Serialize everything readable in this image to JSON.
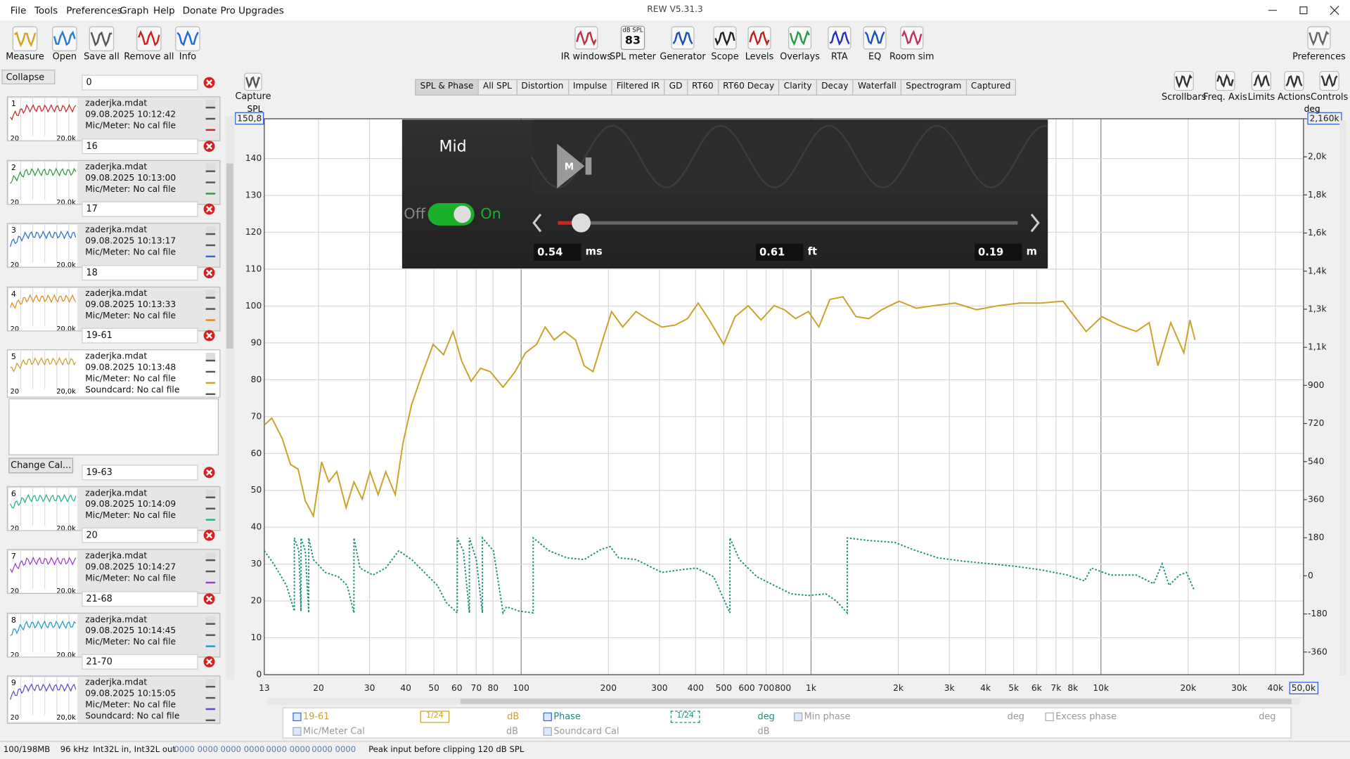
{
  "window": {
    "title": "REW V5.31.3"
  },
  "menu": [
    "File",
    "Tools",
    "Preferences",
    "Graph",
    "Help",
    "Donate",
    "Pro Upgrades"
  ],
  "toolbar": {
    "left": [
      "Measure",
      "Open",
      "Save all",
      "Remove all",
      "Info"
    ],
    "center": [
      "IR windows",
      "SPL meter",
      "Generator",
      "Scope",
      "Levels",
      "Overlays",
      "RTA",
      "EQ",
      "Room sim"
    ],
    "spl_meter_icon": {
      "unit": "dB SPL",
      "reading": 83
    },
    "right": "Preferences"
  },
  "sidebar": {
    "collapse": "Collapse",
    "change_cal": "Change Cal...",
    "thumb_axis": [
      "20",
      "20,0k"
    ],
    "selected": 4,
    "measurements": [
      {
        "field": "0",
        "index": 1,
        "color": "#d02424",
        "lines": [
          "zaderjka.mdat",
          "09.08.2025 10:12:42",
          "Mic/Meter: No cal file"
        ]
      },
      {
        "field": "16",
        "index": 2,
        "color": "#2e9a3a",
        "lines": [
          "zaderjka.mdat",
          "09.08.2025 10:13:00",
          "Mic/Meter: No cal file"
        ]
      },
      {
        "field": "17",
        "index": 3,
        "color": "#2a6fd0",
        "lines": [
          "zaderjka.mdat",
          "09.08.2025 10:13:17",
          "Mic/Meter: No cal file"
        ]
      },
      {
        "field": "18",
        "index": 4,
        "color": "#e08a1a",
        "lines": [
          "zaderjka.mdat",
          "09.08.2025 10:13:33",
          "Mic/Meter: No cal file"
        ]
      },
      {
        "field": "19-61",
        "index": 5,
        "color": "#c9a227",
        "lines": [
          "zaderjka.mdat",
          "09.08.2025 10:13:48",
          "Mic/Meter: No cal file",
          "Soundcard: No cal file"
        ]
      },
      {
        "field": "19-63",
        "index": 6,
        "color": "#22b48a",
        "lines": [
          "zaderjka.mdat",
          "09.08.2025 10:14:09",
          "Mic/Meter: No cal file"
        ]
      },
      {
        "field": "20",
        "index": 7,
        "color": "#9a3ad0",
        "lines": [
          "zaderjka.mdat",
          "09.08.2025 10:14:27",
          "Mic/Meter: No cal file"
        ]
      },
      {
        "field": "21-68",
        "index": 8,
        "color": "#1a9ad0",
        "lines": [
          "zaderjka.mdat",
          "09.08.2025 10:14:45",
          "Mic/Meter: No cal file"
        ]
      },
      {
        "field": "21-70",
        "index": 9,
        "color": "#5a4ad0",
        "lines": [
          "zaderjka.mdat",
          "09.08.2025 10:15:05",
          "Mic/Meter: No cal file",
          "Soundcard: No cal file"
        ]
      }
    ]
  },
  "capture": "Capture",
  "tabs": [
    "SPL & Phase",
    "All SPL",
    "Distortion",
    "Impulse",
    "Filtered IR",
    "GD",
    "RT60",
    "RT60 Decay",
    "Clarity",
    "Decay",
    "Waterfall",
    "Spectrogram",
    "Captured"
  ],
  "active_tab": 0,
  "view_buttons": [
    "Scrollbars",
    "Freq. Axis",
    "Limits",
    "Actions",
    "Controls"
  ],
  "chart_data": {
    "type": "line",
    "y_label": "SPL",
    "y2_label": "deg",
    "log_x": true,
    "grid": true,
    "xlim": [
      13,
      50000
    ],
    "xticks": [
      13,
      20,
      30,
      40,
      50,
      60,
      70,
      80,
      100,
      200,
      300,
      400,
      500,
      600,
      700,
      800,
      {
        "value": 1000,
        "label": "1k"
      },
      {
        "value": 2000,
        "label": "2k"
      },
      {
        "value": 3000,
        "label": "3k"
      },
      {
        "value": 4000,
        "label": "4k"
      },
      {
        "value": 5000,
        "label": "5k"
      },
      {
        "value": 6000,
        "label": "6k"
      },
      {
        "value": 7000,
        "label": "7k"
      },
      {
        "value": 8000,
        "label": "8k"
      },
      {
        "value": 10000,
        "label": "10k"
      },
      {
        "value": 20000,
        "label": "20k"
      },
      {
        "value": 30000,
        "label": "30k"
      },
      {
        "value": 40000,
        "label": "40k"
      },
      {
        "value": 50000,
        "label": "50,0k"
      }
    ],
    "ylim": [
      0,
      150.8
    ],
    "yticks": [
      0,
      10,
      20,
      30,
      40,
      50,
      60,
      70,
      80,
      90,
      100,
      110,
      120,
      130,
      140,
      {
        "value": 150.8,
        "label": "150,8"
      }
    ],
    "y2lim": [
      -467,
      2160
    ],
    "y2ticks": [
      -360,
      -180,
      0,
      180,
      360,
      540,
      720,
      900,
      {
        "value": 1080,
        "label": "1,1k"
      },
      {
        "value": 1260,
        "label": "1,3k"
      },
      {
        "value": 1440,
        "label": "1,4k"
      },
      {
        "value": 1620,
        "label": "1,6k"
      },
      {
        "value": 1800,
        "label": "1,8k"
      },
      {
        "value": 1980,
        "label": "2,0k"
      },
      {
        "value": 2160,
        "label": "2,160k"
      }
    ],
    "series": [
      {
        "name": "19-61",
        "color": "#c9a227",
        "smoothing": "1/24",
        "unit": "dB",
        "x": [
          13,
          13.8,
          15,
          16,
          17,
          18,
          19.2,
          20.5,
          21.7,
          23.1,
          24.9,
          26.5,
          28.3,
          30.1,
          32.1,
          34.1,
          36.8,
          39.1,
          41.9,
          45.5,
          49.7,
          54,
          58.2,
          62.4,
          67.2,
          72.4,
          78.2,
          86.6,
          95.3,
          103.5,
          113,
          121,
          130,
          141,
          154,
          165,
          177,
          189,
          205,
          224,
          249,
          276,
          306,
          339,
          375,
          408,
          446,
          500,
          547,
          607,
          672,
          745,
          809,
          884,
          980,
          1064,
          1162,
          1289,
          1429,
          1583,
          1754,
          2013,
          2308,
          2649,
          3143,
          3727,
          4424,
          5248,
          6232,
          7396,
          8892,
          10070,
          11550,
          13240,
          14680,
          15730,
          17420,
          19320,
          20280,
          21100
        ],
        "values": [
          67.7,
          69.6,
          64.0,
          57.0,
          55.8,
          47.2,
          43.0,
          57.7,
          52.3,
          55.1,
          45.3,
          52.3,
          47.6,
          55.1,
          48.8,
          55.1,
          48.8,
          62.8,
          73.3,
          81.5,
          89.6,
          86.8,
          93.1,
          85.0,
          79.6,
          83.1,
          82.2,
          78.0,
          82.2,
          87.3,
          89.6,
          94.3,
          90.8,
          93.1,
          90.8,
          83.8,
          82.2,
          89.6,
          98.5,
          94.3,
          98.5,
          96.2,
          94.3,
          94.8,
          96.6,
          100.8,
          96.2,
          89.6,
          97.1,
          100.1,
          96.2,
          100.1,
          99.0,
          96.6,
          98.5,
          94.3,
          101.8,
          102.5,
          97.1,
          96.6,
          99.0,
          101.3,
          99.4,
          100.1,
          100.8,
          99.0,
          100.1,
          100.8,
          100.8,
          101.3,
          93.1,
          97.1,
          94.8,
          93.1,
          95.5,
          83.8,
          95.5,
          87.3,
          96.2,
          90.8
        ]
      },
      {
        "name": "Phase",
        "color": "#1a8f7a",
        "axis": "y2",
        "dashed": true,
        "smoothing": "1/24",
        "unit": "deg",
        "x": [
          13,
          14,
          15.5,
          16.5,
          16.5,
          17.1,
          17.4,
          17.4,
          18,
          18.5,
          18.5,
          19.2,
          21.1,
          23.4,
          25.1,
          26.5,
          26.5,
          27.8,
          30.8,
          34.1,
          37.8,
          41.9,
          46.4,
          51.4,
          55.1,
          60.2,
          60.2,
          63.2,
          66.3,
          66.3,
          70,
          73.5,
          73.5,
          80.3,
          86.6,
          89,
          98.6,
          110,
          110,
          125,
          144,
          165,
          189,
          203,
          217,
          249,
          285,
          306,
          351,
          402,
          461,
          525,
          525,
          566,
          650,
          745,
          854,
          980,
          1124,
          1220,
          1334,
          1334,
          1583,
          1944,
          2230,
          2739,
          3363,
          4130,
          5073,
          6232,
          7650,
          8775,
          9270,
          10790,
          13240,
          15200,
          16260,
          17180,
          18660,
          19720,
          20940
        ],
        "values": [
          118,
          57,
          -45,
          -167,
          179,
          118,
          -167,
          179,
          118,
          -175,
          179,
          77,
          16,
          -4,
          -45,
          -175,
          179,
          37,
          4,
          37,
          118,
          77,
          16,
          -45,
          -126,
          -175,
          179,
          118,
          -175,
          179,
          77,
          -175,
          179,
          118,
          -175,
          -146,
          -167,
          -175,
          179,
          118,
          85,
          77,
          126,
          138,
          85,
          77,
          37,
          16,
          28,
          37,
          -4,
          -175,
          179,
          77,
          -4,
          -45,
          -85,
          -93,
          -85,
          -118,
          -175,
          179,
          167,
          158,
          126,
          85,
          69,
          57,
          45,
          28,
          4,
          -24,
          37,
          4,
          4,
          -37,
          57,
          -45,
          4,
          16,
          -65
        ]
      }
    ],
    "extra_legend": [
      {
        "name": "Min phase",
        "unit": "deg",
        "checked": true
      },
      {
        "name": "Excess phase",
        "unit": "deg",
        "checked": false
      },
      {
        "name": "Mic/Meter Cal",
        "unit": "dB",
        "checked": true
      },
      {
        "name": "Soundcard Cal",
        "unit": "dB",
        "checked": true
      }
    ]
  },
  "overlay": {
    "title": "Mid",
    "off": "Off",
    "on": "On",
    "button": "M",
    "fields": [
      {
        "value": 0.54,
        "unit": "ms"
      },
      {
        "value": 0.61,
        "unit": "ft"
      },
      {
        "value": 0.19,
        "unit": "m"
      }
    ]
  },
  "status": [
    "100/198MB",
    "96 kHz",
    "Int32L in, Int32L out",
    "0000 0000",
    "0000 0000",
    "0000 0000",
    "0000 0000",
    "Peak input before clipping 120 dB SPL"
  ]
}
